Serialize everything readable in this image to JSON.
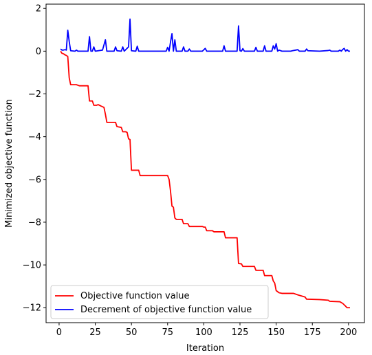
{
  "chart_data": {
    "type": "line",
    "title": "",
    "xlabel": "Iteration",
    "ylabel": "Minimized objective function",
    "xlim": [
      -9,
      211
    ],
    "ylim": [
      -12.7,
      2.2
    ],
    "xticks": [
      0,
      25,
      50,
      75,
      100,
      125,
      150,
      175,
      200
    ],
    "yticks": [
      -12,
      -10,
      -8,
      -6,
      -4,
      -2,
      0,
      2
    ],
    "ytick_labels": [
      "−12",
      "−10",
      "−8",
      "−6",
      "−4",
      "−2",
      "0",
      "2"
    ],
    "grid": false,
    "legend_placement": "lower-left",
    "series": [
      {
        "name": "Objective function value",
        "color": "#ff0000",
        "points": [
          [
            1,
            0.0
          ],
          [
            2,
            -0.1
          ],
          [
            3,
            -0.12
          ],
          [
            4,
            -0.17
          ],
          [
            5,
            -0.2
          ],
          [
            6,
            -0.25
          ],
          [
            7,
            -1.25
          ],
          [
            8,
            -1.57
          ],
          [
            12,
            -1.57
          ],
          [
            14,
            -1.62
          ],
          [
            20,
            -1.62
          ],
          [
            21,
            -2.33
          ],
          [
            23,
            -2.33
          ],
          [
            24,
            -2.53
          ],
          [
            26,
            -2.53
          ],
          [
            27,
            -2.5
          ],
          [
            29,
            -2.57
          ],
          [
            31,
            -2.63
          ],
          [
            32,
            -2.95
          ],
          [
            33,
            -3.33
          ],
          [
            39,
            -3.33
          ],
          [
            40,
            -3.53
          ],
          [
            43,
            -3.57
          ],
          [
            44,
            -3.77
          ],
          [
            46,
            -3.77
          ],
          [
            47,
            -3.8
          ],
          [
            48,
            -4.1
          ],
          [
            49,
            -4.13
          ],
          [
            50,
            -5.57
          ],
          [
            55,
            -5.57
          ],
          [
            56,
            -5.82
          ],
          [
            75,
            -5.82
          ],
          [
            76,
            -6.0
          ],
          [
            77,
            -6.55
          ],
          [
            78,
            -7.25
          ],
          [
            79,
            -7.3
          ],
          [
            80,
            -7.8
          ],
          [
            81,
            -7.87
          ],
          [
            85,
            -7.87
          ],
          [
            86,
            -8.07
          ],
          [
            89,
            -8.07
          ],
          [
            90,
            -8.2
          ],
          [
            99,
            -8.2
          ],
          [
            100,
            -8.23
          ],
          [
            101,
            -8.23
          ],
          [
            102,
            -8.4
          ],
          [
            106,
            -8.4
          ],
          [
            107,
            -8.45
          ],
          [
            114,
            -8.45
          ],
          [
            115,
            -8.73
          ],
          [
            123,
            -8.73
          ],
          [
            124,
            -9.93
          ],
          [
            126,
            -9.95
          ],
          [
            127,
            -10.07
          ],
          [
            135,
            -10.07
          ],
          [
            136,
            -10.25
          ],
          [
            141,
            -10.25
          ],
          [
            142,
            -10.5
          ],
          [
            147,
            -10.5
          ],
          [
            148,
            -10.75
          ],
          [
            149,
            -10.85
          ],
          [
            150,
            -11.2
          ],
          [
            152,
            -11.3
          ],
          [
            154,
            -11.33
          ],
          [
            162,
            -11.33
          ],
          [
            165,
            -11.4
          ],
          [
            170,
            -11.5
          ],
          [
            171,
            -11.6
          ],
          [
            180,
            -11.62
          ],
          [
            186,
            -11.65
          ],
          [
            187,
            -11.7
          ],
          [
            194,
            -11.72
          ],
          [
            196,
            -11.8
          ],
          [
            198,
            -11.93
          ],
          [
            199,
            -12.0
          ],
          [
            201,
            -12.0
          ]
        ]
      },
      {
        "name": "Decrement of objective function value",
        "color": "#0000ff",
        "points": [
          [
            1,
            0.1
          ],
          [
            2,
            0.05
          ],
          [
            3,
            0.05
          ],
          [
            4,
            0.07
          ],
          [
            5,
            0.05
          ],
          [
            6,
            0.98
          ],
          [
            7,
            0.45
          ],
          [
            8,
            0.02
          ],
          [
            11,
            0.0
          ],
          [
            12,
            0.05
          ],
          [
            13,
            0.0
          ],
          [
            20,
            0.0
          ],
          [
            21,
            0.68
          ],
          [
            22,
            0.0
          ],
          [
            23,
            0.0
          ],
          [
            24,
            0.2
          ],
          [
            25,
            0.0
          ],
          [
            30,
            0.05
          ],
          [
            32,
            0.53
          ],
          [
            33,
            0.0
          ],
          [
            38,
            0.0
          ],
          [
            39,
            0.2
          ],
          [
            40,
            0.02
          ],
          [
            43,
            0.0
          ],
          [
            44,
            0.2
          ],
          [
            45,
            0.0
          ],
          [
            48,
            0.2
          ],
          [
            49,
            1.5
          ],
          [
            50,
            0.02
          ],
          [
            53,
            0.0
          ],
          [
            54,
            0.23
          ],
          [
            55,
            0.0
          ],
          [
            74,
            0.0
          ],
          [
            75,
            0.18
          ],
          [
            76,
            0.0
          ],
          [
            77,
            0.43
          ],
          [
            78,
            0.82
          ],
          [
            79,
            0.0
          ],
          [
            80,
            0.53
          ],
          [
            81,
            0.0
          ],
          [
            85,
            0.0
          ],
          [
            86,
            0.2
          ],
          [
            87,
            0.0
          ],
          [
            89,
            0.0
          ],
          [
            90,
            0.1
          ],
          [
            91,
            0.0
          ],
          [
            99,
            0.0
          ],
          [
            101,
            0.13
          ],
          [
            102,
            0.0
          ],
          [
            113,
            0.0
          ],
          [
            114,
            0.25
          ],
          [
            115,
            0.0
          ],
          [
            123,
            0.0
          ],
          [
            124,
            1.18
          ],
          [
            125,
            0.02
          ],
          [
            126,
            0.0
          ],
          [
            127,
            0.12
          ],
          [
            128,
            0.0
          ],
          [
            135,
            0.0
          ],
          [
            136,
            0.18
          ],
          [
            137,
            0.0
          ],
          [
            141,
            0.0
          ],
          [
            142,
            0.25
          ],
          [
            143,
            0.0
          ],
          [
            147,
            0.0
          ],
          [
            148,
            0.25
          ],
          [
            149,
            0.1
          ],
          [
            150,
            0.35
          ],
          [
            151,
            0.0
          ],
          [
            152,
            0.05
          ],
          [
            154,
            0.0
          ],
          [
            160,
            0.0
          ],
          [
            162,
            0.03
          ],
          [
            165,
            0.07
          ],
          [
            166,
            0.0
          ],
          [
            170,
            0.0
          ],
          [
            171,
            0.1
          ],
          [
            172,
            0.02
          ],
          [
            180,
            0.0
          ],
          [
            186,
            0.03
          ],
          [
            187,
            0.05
          ],
          [
            188,
            0.0
          ],
          [
            193,
            0.0
          ],
          [
            194,
            0.05
          ],
          [
            195,
            0.0
          ],
          [
            196,
            0.08
          ],
          [
            197,
            0.13
          ],
          [
            198,
            0.0
          ],
          [
            199,
            0.07
          ],
          [
            200,
            0.0
          ],
          [
            201,
            0.0
          ]
        ]
      }
    ]
  }
}
